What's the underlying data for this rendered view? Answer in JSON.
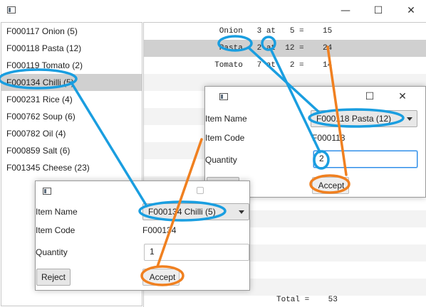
{
  "window": {
    "minimize_glyph": "—",
    "maximize_glyph": "☐",
    "close_glyph": "✕"
  },
  "left_list": {
    "items": [
      {
        "label": "F000117 Onion (5)",
        "selected": false
      },
      {
        "label": "F000118 Pasta (12)",
        "selected": false
      },
      {
        "label": "F000119 Tomato (2)",
        "selected": false
      },
      {
        "label": "F000134 Chilli (5)",
        "selected": true
      },
      {
        "label": "F000231 Rice (4)",
        "selected": false
      },
      {
        "label": "F000762 Soup (6)",
        "selected": false
      },
      {
        "label": "F000782 Oil (4)",
        "selected": false
      },
      {
        "label": "F000859 Salt (6)",
        "selected": false
      },
      {
        "label": "F001345 Cheese (23)",
        "selected": false
      }
    ]
  },
  "order_lines": [
    "   Onion   3 at   5 =    15",
    "   Pasta   2 at  12 =    24",
    "  Tomato   7 at   2 =    14"
  ],
  "total_line": "Total =    53",
  "dialog_right": {
    "item_name_label": "Item Name",
    "item_name_value": "F000118 Pasta (12)",
    "item_code_label": "Item Code",
    "item_code_value": "F000118",
    "quantity_label": "Quantity",
    "quantity_value": "2",
    "reject_label": "Reject",
    "accept_label": "Accept",
    "maximize_glyph": "☐",
    "close_glyph": "✕"
  },
  "dialog_left": {
    "item_name_label": "Item Name",
    "item_name_value": "F000134 Chilli (5)",
    "item_code_label": "Item Code",
    "item_code_value": "F000134",
    "quantity_label": "Quantity",
    "quantity_value": "1",
    "reject_label": "Reject",
    "accept_label": "Accept"
  },
  "colors": {
    "annotation_blue": "#1a9ee0",
    "annotation_orange": "#f08020",
    "selection_gray": "#d0d0d0",
    "focus_blue": "#2c8be8"
  }
}
